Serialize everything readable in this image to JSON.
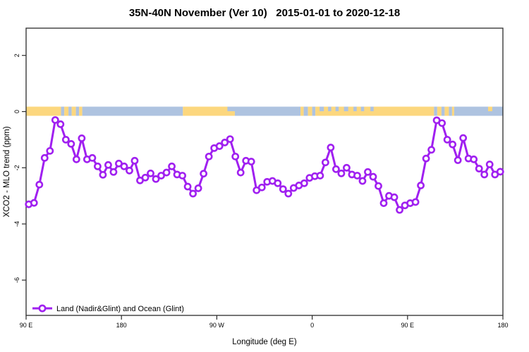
{
  "title": "35N-40N November (Ver 10)   2015-01-01 to 2020-12-18",
  "chart_data": {
    "type": "line",
    "title": "35N-40N November (Ver 10)   2015-01-01 to 2020-12-18",
    "xlabel": "Longitude (deg E)",
    "ylabel": "XCO2 - MLO trend (ppm)",
    "ylim": [
      -7.3,
      3.0
    ],
    "grid": false,
    "yticks": [
      {
        "value": 2,
        "label": "2"
      },
      {
        "value": 0,
        "label": "0"
      },
      {
        "value": -2,
        "label": "-2"
      },
      {
        "value": -4,
        "label": "-4"
      },
      {
        "value": -6,
        "label": "-6"
      }
    ],
    "xticks": [
      {
        "deg": 0,
        "label": "90 E"
      },
      {
        "deg": 90,
        "label": "180"
      },
      {
        "deg": 180,
        "label": "90 W"
      },
      {
        "deg": 270,
        "label": "0"
      },
      {
        "deg": 360,
        "label": "90 E"
      },
      {
        "deg": 450,
        "label": "180"
      }
    ],
    "x_axis_note": "longitude axis wraps eastward from 90E through 180, 90W, 0, back to 90E and 180 (450 deg total)",
    "series": [
      {
        "name": "Land (Nadir&Glint) and Ocean (Glint)",
        "color": "#A020F0",
        "marker": "open-circle",
        "x_start_deg": 2.5,
        "x_step_deg": 5,
        "values": [
          -3.3,
          -3.25,
          -2.6,
          -1.65,
          -1.4,
          -0.3,
          -0.45,
          -1.0,
          -1.15,
          -1.7,
          -0.95,
          -1.7,
          -1.65,
          -1.95,
          -2.25,
          -1.9,
          -2.15,
          -1.85,
          -1.95,
          -2.1,
          -1.75,
          -2.45,
          -2.35,
          -2.2,
          -2.4,
          -2.28,
          -2.17,
          -1.95,
          -2.24,
          -2.28,
          -2.67,
          -2.92,
          -2.73,
          -2.21,
          -1.6,
          -1.3,
          -1.23,
          -1.1,
          -0.98,
          -1.6,
          -2.17,
          -1.75,
          -1.78,
          -2.8,
          -2.7,
          -2.5,
          -2.47,
          -2.55,
          -2.76,
          -2.92,
          -2.72,
          -2.63,
          -2.55,
          -2.36,
          -2.3,
          -2.28,
          -1.81,
          -1.28,
          -2.05,
          -2.2,
          -2.0,
          -2.24,
          -2.28,
          -2.47,
          -2.15,
          -2.32,
          -2.65,
          -3.26,
          -3.0,
          -3.05,
          -3.5,
          -3.34,
          -3.26,
          -3.22,
          -2.63,
          -1.67,
          -1.36,
          -0.31,
          -0.41,
          -1.0,
          -1.17,
          -1.73,
          -0.94,
          -1.67,
          -1.7,
          -2.03,
          -2.24,
          -1.88,
          -2.24,
          -2.14
        ]
      }
    ],
    "zero_band": {
      "description": "land/ocean strip centered on 0 ppm",
      "land_color": "#FCD77E",
      "ocean_color": "#AEC3E0",
      "segments": [
        {
          "d0": 0,
          "d1": 33,
          "t": "land"
        },
        {
          "d0": 33,
          "d1": 36,
          "t": "ocean"
        },
        {
          "d0": 36,
          "d1": 40,
          "t": "land"
        },
        {
          "d0": 40,
          "d1": 43,
          "t": "ocean"
        },
        {
          "d0": 43,
          "d1": 47,
          "t": "land"
        },
        {
          "d0": 47,
          "d1": 50,
          "t": "ocean"
        },
        {
          "d0": 50,
          "d1": 53,
          "t": "land"
        },
        {
          "d0": 53,
          "d1": 148,
          "t": "ocean"
        },
        {
          "d0": 148,
          "d1": 197,
          "t": "land"
        },
        {
          "d0": 197,
          "d1": 259,
          "t": "ocean"
        },
        {
          "d0": 259,
          "d1": 262,
          "t": "land"
        },
        {
          "d0": 262,
          "d1": 266,
          "t": "ocean"
        },
        {
          "d0": 266,
          "d1": 270,
          "t": "land"
        },
        {
          "d0": 270,
          "d1": 273,
          "t": "ocean"
        },
        {
          "d0": 273,
          "d1": 385,
          "t": "land"
        },
        {
          "d0": 385,
          "d1": 388,
          "t": "ocean"
        },
        {
          "d0": 388,
          "d1": 392,
          "t": "land"
        },
        {
          "d0": 392,
          "d1": 395,
          "t": "ocean"
        },
        {
          "d0": 395,
          "d1": 399,
          "t": "land"
        },
        {
          "d0": 399,
          "d1": 402,
          "t": "ocean"
        },
        {
          "d0": 402,
          "d1": 404,
          "t": "land"
        },
        {
          "d0": 404,
          "d1": 450,
          "t": "ocean"
        }
      ],
      "half_top_overlays": [
        {
          "d0": 190,
          "d1": 201,
          "t": "ocean"
        },
        {
          "d0": 277,
          "d1": 281,
          "t": "ocean"
        },
        {
          "d0": 285,
          "d1": 288,
          "t": "ocean"
        },
        {
          "d0": 292,
          "d1": 295,
          "t": "ocean"
        },
        {
          "d0": 300,
          "d1": 304,
          "t": "ocean"
        },
        {
          "d0": 309,
          "d1": 312,
          "t": "ocean"
        },
        {
          "d0": 316,
          "d1": 319,
          "t": "ocean"
        },
        {
          "d0": 325,
          "d1": 328,
          "t": "ocean"
        },
        {
          "d0": 436,
          "d1": 440,
          "t": "land"
        }
      ]
    },
    "legend": {
      "label": "Land (Nadir&Glint) and Ocean (Glint)",
      "position": "bottom-left",
      "marker_color": "#A020F0"
    }
  },
  "colors": {
    "series_purple": "#A020F0",
    "band_land_orange": "#FCD77E",
    "band_ocean_blue": "#AEC3E0",
    "axis": "#2b2b2b"
  }
}
